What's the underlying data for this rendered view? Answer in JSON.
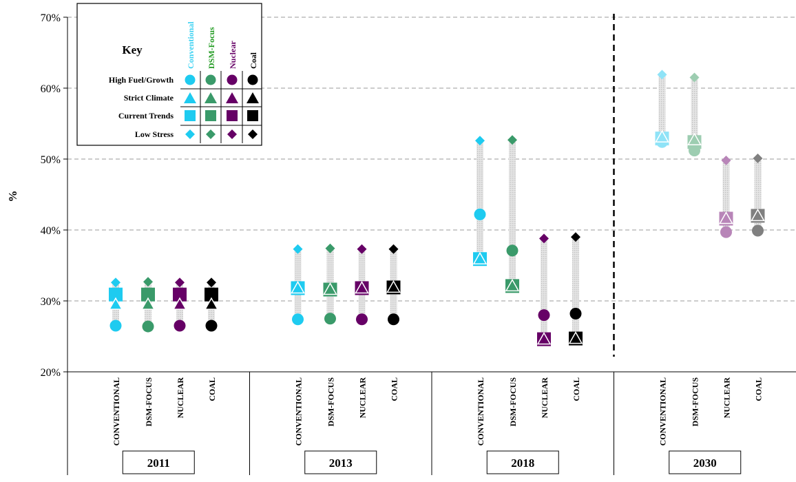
{
  "chart_data": {
    "type": "scatter",
    "title": "",
    "ylabel": "%",
    "ylim": [
      20,
      70
    ],
    "yticks": [
      20,
      30,
      40,
      50,
      60,
      70
    ],
    "ytick_labels": [
      "20%",
      "30%",
      "40%",
      "50%",
      "60%",
      "70%"
    ],
    "grid": "horizontal dashed",
    "categories": [
      "CONVENTIONAL",
      "DSM-FOCUS",
      "NUCLEAR",
      "COAL"
    ],
    "groups": [
      {
        "year": "2011",
        "faded": false,
        "values": {
          "CONVENTIONAL": {
            "high_fuel_growth": 26.5,
            "strict_climate": 29.5,
            "current_trends": 30.9,
            "low_stress": 32.6
          },
          "DSM-FOCUS": {
            "high_fuel_growth": 26.4,
            "strict_climate": 29.5,
            "current_trends": 30.9,
            "low_stress": 32.7
          },
          "NUCLEAR": {
            "high_fuel_growth": 26.5,
            "strict_climate": 29.5,
            "current_trends": 30.9,
            "low_stress": 32.6
          },
          "COAL": {
            "high_fuel_growth": 26.5,
            "strict_climate": 29.5,
            "current_trends": 30.9,
            "low_stress": 32.6
          }
        }
      },
      {
        "year": "2013",
        "faded": false,
        "values": {
          "CONVENTIONAL": {
            "high_fuel_growth": 27.4,
            "strict_climate": 31.8,
            "current_trends": 31.8,
            "low_stress": 37.3
          },
          "DSM-FOCUS": {
            "high_fuel_growth": 27.5,
            "strict_climate": 31.6,
            "current_trends": 31.6,
            "low_stress": 37.4
          },
          "NUCLEAR": {
            "high_fuel_growth": 27.4,
            "strict_climate": 31.8,
            "current_trends": 31.8,
            "low_stress": 37.3
          },
          "COAL": {
            "high_fuel_growth": 27.4,
            "strict_climate": 31.9,
            "current_trends": 31.9,
            "low_stress": 37.3
          }
        }
      },
      {
        "year": "2018",
        "faded": false,
        "values": {
          "CONVENTIONAL": {
            "high_fuel_growth": 42.2,
            "strict_climate": 35.9,
            "current_trends": 35.9,
            "low_stress": 52.6
          },
          "DSM-FOCUS": {
            "high_fuel_growth": 37.1,
            "strict_climate": 32.1,
            "current_trends": 32.1,
            "low_stress": 52.7
          },
          "NUCLEAR": {
            "high_fuel_growth": 28.0,
            "strict_climate": 24.6,
            "current_trends": 24.6,
            "low_stress": 38.8
          },
          "COAL": {
            "high_fuel_growth": 28.2,
            "strict_climate": 24.7,
            "current_trends": 24.7,
            "low_stress": 39.0
          }
        }
      },
      {
        "year": "2030",
        "faded": true,
        "values": {
          "CONVENTIONAL": {
            "high_fuel_growth": 52.4,
            "strict_climate": 53.1,
            "current_trends": 52.9,
            "low_stress": 61.9
          },
          "DSM-FOCUS": {
            "high_fuel_growth": 51.2,
            "strict_climate": 52.7,
            "current_trends": 52.4,
            "low_stress": 61.5
          },
          "NUCLEAR": {
            "high_fuel_growth": 39.7,
            "strict_climate": 41.6,
            "current_trends": 41.6,
            "low_stress": 49.8
          },
          "COAL": {
            "high_fuel_growth": 39.9,
            "strict_climate": 42.0,
            "current_trends": 42.0,
            "low_stress": 50.1
          }
        }
      }
    ],
    "colors": {
      "CONVENTIONAL": "#1ecbf0",
      "DSM-FOCUS": "#3a9a6a",
      "NUCLEAR": "#660066",
      "COAL": "#000000"
    },
    "faded_colors": {
      "CONVENTIONAL": "#8fe3f7",
      "DSM-FOCUS": "#9dcdb1",
      "NUCLEAR": "#b885b8",
      "COAL": "#808080"
    },
    "range_bar_color": "#d3d3d3",
    "divider_before_group": "2030",
    "legend": {
      "title": "Key",
      "placement": "top-left",
      "columns": [
        "Conventional",
        "DSM-Focus",
        "Nuclear",
        "Coal"
      ],
      "column_text_colors": [
        "#3fd2f2",
        "#1f9a1f",
        "#660066",
        "#000000"
      ],
      "rows": [
        {
          "key": "high_fuel_growth",
          "label": "High Fuel/Growth",
          "marker": "circle"
        },
        {
          "key": "strict_climate",
          "label": "Strict Climate",
          "marker": "triangle"
        },
        {
          "key": "current_trends",
          "label": "Current Trends",
          "marker": "square"
        },
        {
          "key": "low_stress",
          "label": "Low Stress",
          "marker": "diamond"
        }
      ]
    }
  }
}
